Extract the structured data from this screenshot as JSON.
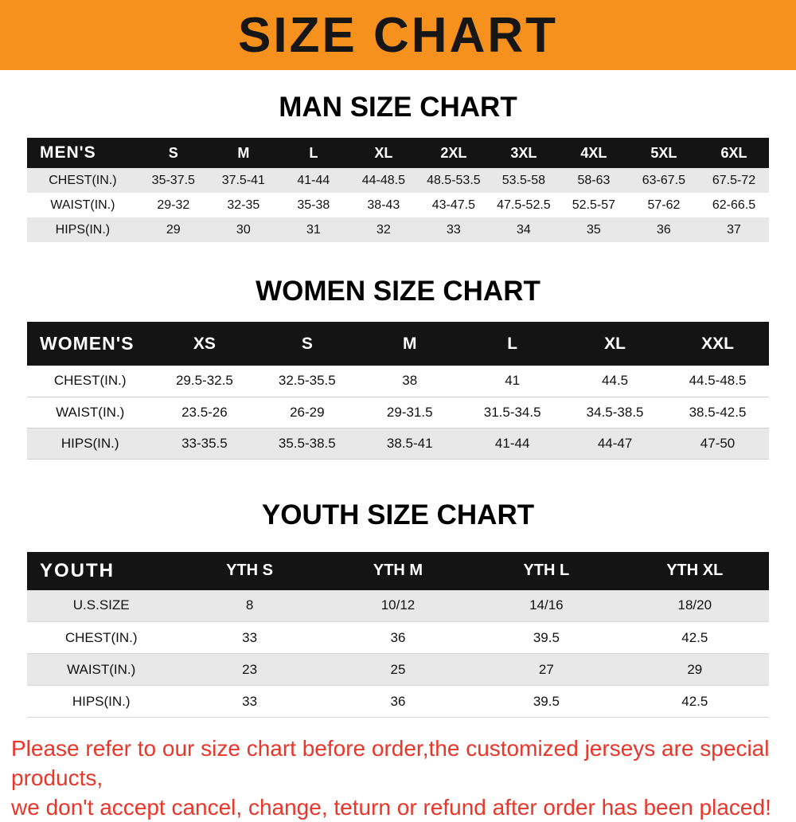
{
  "banner": {
    "title": "SIZE CHART",
    "bg_color": "#F6911E"
  },
  "sections": [
    {
      "id": "man",
      "title": "MAN SIZE CHART",
      "table": {
        "header": [
          "MEN'S",
          "S",
          "M",
          "L",
          "XL",
          "2XL",
          "3XL",
          "4XL",
          "5XL",
          "6XL"
        ],
        "rows": [
          [
            "CHEST(IN.)",
            "35-37.5",
            "37.5-41",
            "41-44",
            "44-48.5",
            "48.5-53.5",
            "53.5-58",
            "58-63",
            "63-67.5",
            "67.5-72"
          ],
          [
            "WAIST(IN.)",
            "29-32",
            "32-35",
            "35-38",
            "38-43",
            "43-47.5",
            "47.5-52.5",
            "52.5-57",
            "57-62",
            "62-66.5"
          ],
          [
            "HIPS(IN.)",
            "29",
            "30",
            "31",
            "32",
            "33",
            "34",
            "35",
            "36",
            "37"
          ]
        ]
      }
    },
    {
      "id": "women",
      "title": "WOMEN SIZE CHART",
      "table": {
        "header": [
          "WOMEN'S",
          "XS",
          "S",
          "M",
          "L",
          "XL",
          "XXL"
        ],
        "rows": [
          [
            "CHEST(IN.)",
            "29.5-32.5",
            "32.5-35.5",
            "38",
            "41",
            "44.5",
            "44.5-48.5"
          ],
          [
            "WAIST(IN.)",
            "23.5-26",
            "26-29",
            "29-31.5",
            "31.5-34.5",
            "34.5-38.5",
            "38.5-42.5"
          ],
          [
            "HIPS(IN.)",
            "33-35.5",
            "35.5-38.5",
            "38.5-41",
            "41-44",
            "44-47",
            "47-50"
          ]
        ]
      }
    },
    {
      "id": "youth",
      "title": "YOUTH SIZE CHART",
      "table": {
        "header": [
          "YOUTH",
          "YTH S",
          "YTH M",
          "YTH L",
          "YTH XL"
        ],
        "rows": [
          [
            "U.S.SIZE",
            "8",
            "10/12",
            "14/16",
            "18/20"
          ],
          [
            "CHEST(IN.)",
            "33",
            "36",
            "39.5",
            "42.5"
          ],
          [
            "WAIST(IN.)",
            "23",
            "25",
            "27",
            "29"
          ],
          [
            "HIPS(IN.)",
            "33",
            "36",
            "39.5",
            "42.5"
          ]
        ]
      }
    }
  ],
  "footer": {
    "line1": "Please refer to our size chart before order,the customized jerseys are special products,",
    "line2": "we don't accept cancel, change, teturn or refund after order has been placed!",
    "color": "#E8362B"
  }
}
